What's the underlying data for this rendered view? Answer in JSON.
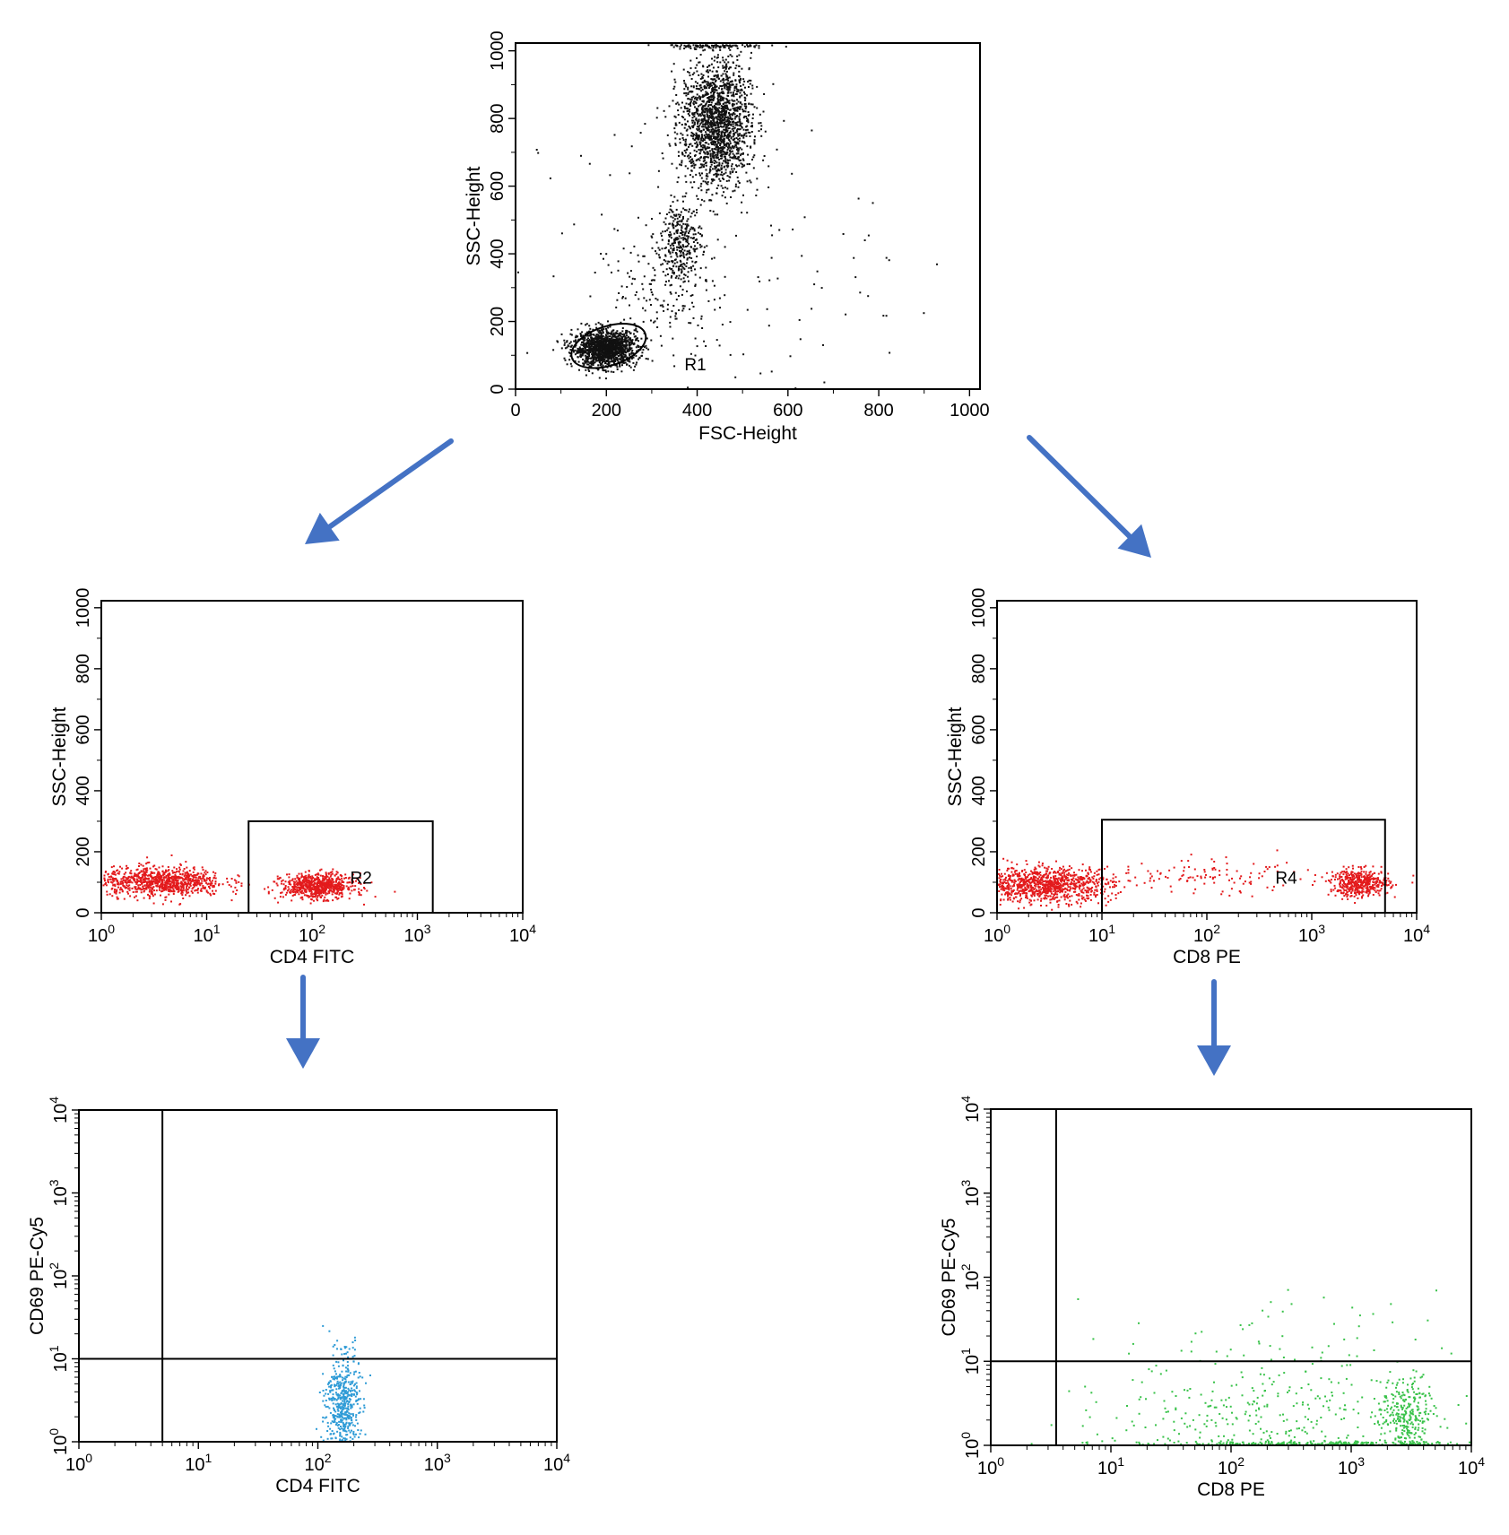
{
  "colors": {
    "arrow": "#4472c4",
    "scatter": "#111111",
    "cd4_gated": "#e31a1c",
    "cd8_gated": "#e31a1c",
    "cd4_activation": "#2e9bd6",
    "cd8_activation": "#39c24a"
  },
  "arrows": [
    {
      "name": "arrow-to-cd4",
      "icon": "arrow-down-left-icon"
    },
    {
      "name": "arrow-to-cd8",
      "icon": "arrow-down-right-icon"
    },
    {
      "name": "arrow-cd4-to-cd69",
      "icon": "arrow-down-icon"
    },
    {
      "name": "arrow-cd8-to-cd69",
      "icon": "arrow-down-icon"
    }
  ],
  "chart_data": [
    {
      "id": "fsc-ssc",
      "type": "scatter",
      "title": "",
      "xlabel": "FSC-Height",
      "ylabel": "SSC-Height",
      "xscale": "linear",
      "yscale": "linear",
      "xlim": [
        0,
        1023
      ],
      "ylim": [
        0,
        1023
      ],
      "xticks": [
        0,
        200,
        400,
        600,
        800,
        1000
      ],
      "yticks": [
        0,
        200,
        400,
        600,
        800,
        1000
      ],
      "point_color": "#111111",
      "grid": false,
      "gates": [
        {
          "type": "ellipse",
          "label": "R1",
          "center": [
            205,
            128
          ],
          "radii": [
            85,
            58
          ],
          "label_at": [
            372,
            55
          ]
        }
      ],
      "populations": [
        {
          "name": "lymphocytes",
          "center": [
            195,
            122
          ],
          "spread": [
            35,
            26
          ],
          "count": 1400
        },
        {
          "name": "monocytes",
          "center": [
            365,
            440
          ],
          "spread": [
            22,
            55
          ],
          "count": 300
        },
        {
          "name": "granulocytes",
          "center": [
            440,
            790
          ],
          "spread": [
            38,
            95
          ],
          "count": 1700
        },
        {
          "name": "transition",
          "center": [
            330,
            300
          ],
          "spread": [
            60,
            90
          ],
          "count": 160
        },
        {
          "name": "top-edge",
          "center": [
            430,
            1018
          ],
          "spread": [
            60,
            4
          ],
          "count": 120
        },
        {
          "name": "background",
          "center": [
            400,
            380
          ],
          "spread": [
            200,
            250
          ],
          "count": 170
        }
      ]
    },
    {
      "id": "cd4-ssc",
      "type": "scatter",
      "title": "",
      "xlabel": "CD4 FITC",
      "ylabel": "SSC-Height",
      "xscale": "log",
      "yscale": "linear",
      "xlim": [
        1,
        10000
      ],
      "ylim": [
        0,
        1023
      ],
      "xticks": [
        1,
        10,
        100,
        1000,
        10000
      ],
      "yticks": [
        0,
        200,
        400,
        600,
        800,
        1000
      ],
      "point_color": "#e31a1c",
      "grid": false,
      "gates": [
        {
          "type": "rect",
          "label": "R2",
          "x": [
            25,
            1400
          ],
          "y": [
            0,
            300
          ],
          "label_at": [
            230,
            95
          ]
        }
      ],
      "populations": [
        {
          "name": "cd4-negative",
          "center_log10": [
            0.55,
            105
          ],
          "spread": [
            0.3,
            24
          ],
          "count": 900
        },
        {
          "name": "cd4-positive",
          "center_log10": [
            2.05,
            90
          ],
          "spread": [
            0.17,
            20
          ],
          "count": 700
        }
      ]
    },
    {
      "id": "cd8-ssc",
      "type": "scatter",
      "title": "",
      "xlabel": "CD8 PE",
      "ylabel": "SSC-Height",
      "xscale": "log",
      "yscale": "linear",
      "xlim": [
        1,
        10000
      ],
      "ylim": [
        0,
        1023
      ],
      "xticks": [
        1,
        10,
        100,
        1000,
        10000
      ],
      "yticks": [
        0,
        200,
        400,
        600,
        800,
        1000
      ],
      "point_color": "#e31a1c",
      "grid": false,
      "gates": [
        {
          "type": "rect",
          "label": "R4",
          "x": [
            10,
            5000
          ],
          "y": [
            0,
            305
          ],
          "label_at": [
            450,
            95
          ]
        }
      ],
      "populations": [
        {
          "name": "cd8-negative",
          "center_log10": [
            0.45,
            95
          ],
          "spread": [
            0.32,
            28
          ],
          "count": 1000
        },
        {
          "name": "cd8-dim",
          "center_log10": [
            2.0,
            115
          ],
          "spread": [
            0.55,
            28
          ],
          "count": 120
        },
        {
          "name": "cd8-positive",
          "center_log10": [
            3.45,
            100
          ],
          "spread": [
            0.14,
            22
          ],
          "count": 450
        }
      ]
    },
    {
      "id": "cd4-cd69",
      "type": "scatter",
      "title": "",
      "xlabel": "CD4 FITC",
      "ylabel": "CD69 PE-Cy5",
      "xscale": "log",
      "yscale": "log",
      "xlim": [
        1,
        10000
      ],
      "ylim": [
        1,
        10000
      ],
      "xticks": [
        1,
        10,
        100,
        1000,
        10000
      ],
      "yticks": [
        1,
        10,
        100,
        1000,
        10000
      ],
      "point_color": "#2e9bd6",
      "grid": false,
      "quadrant": {
        "x": 5,
        "y": 10
      },
      "populations": [
        {
          "name": "cd4-cd69-negative",
          "center_log10": [
            2.2,
            0.45
          ],
          "spread": [
            0.07,
            0.3
          ],
          "count": 500
        },
        {
          "name": "cd4-cd69-positive",
          "center_log10": [
            2.25,
            1.1
          ],
          "spread": [
            0.08,
            0.12
          ],
          "count": 12
        }
      ]
    },
    {
      "id": "cd8-cd69",
      "type": "scatter",
      "title": "",
      "xlabel": "CD8 PE",
      "ylabel": "CD69 PE-Cy5",
      "xscale": "log",
      "yscale": "log",
      "xlim": [
        1,
        10000
      ],
      "ylim": [
        1,
        10000
      ],
      "xticks": [
        1,
        10,
        100,
        1000,
        10000
      ],
      "yticks": [
        1,
        10,
        100,
        1000,
        10000
      ],
      "point_color": "#39c24a",
      "grid": false,
      "quadrant": {
        "x": 3.5,
        "y": 10
      },
      "populations": [
        {
          "name": "cd8-baseline",
          "center_log10": [
            2.6,
            0.02
          ],
          "spread": [
            0.75,
            0.02
          ],
          "count": 380
        },
        {
          "name": "cd8-cd69-negative",
          "center_log10": [
            2.4,
            0.45
          ],
          "spread": [
            0.7,
            0.3
          ],
          "count": 320
        },
        {
          "name": "cd8-bright-cluster",
          "center_log10": [
            3.45,
            0.3
          ],
          "spread": [
            0.1,
            0.25
          ],
          "count": 280
        },
        {
          "name": "cd8-cd69-positive",
          "center_log10": [
            2.4,
            1.35
          ],
          "spread": [
            0.65,
            0.25
          ],
          "count": 45
        }
      ]
    }
  ]
}
